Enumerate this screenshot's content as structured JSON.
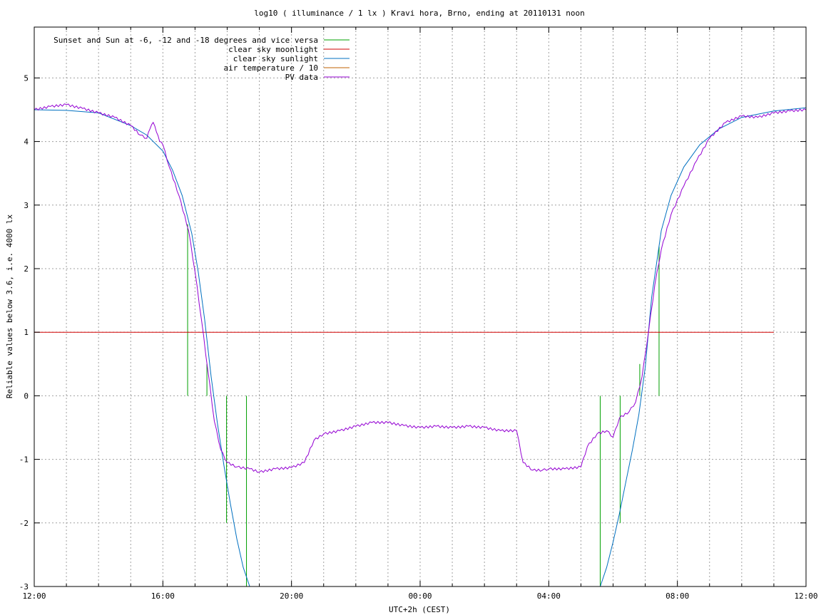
{
  "chart_data": {
    "type": "line",
    "title": "log10 ( illuminance / 1 lx ) Kravi hora, Brno, ending at 20110131 noon",
    "xlabel": "UTC+2h (CEST)",
    "ylabel": "Reliable values below 3.6, i.e. 4000 lx",
    "xlim": [
      12,
      36
    ],
    "ylim": [
      -3,
      5.8
    ],
    "x_ticks": [
      {
        "value": 12,
        "label": "12:00"
      },
      {
        "value": 16,
        "label": "16:00"
      },
      {
        "value": 20,
        "label": "20:00"
      },
      {
        "value": 24,
        "label": "00:00"
      },
      {
        "value": 28,
        "label": "04:00"
      },
      {
        "value": 32,
        "label": "08:00"
      },
      {
        "value": 36,
        "label": "12:00"
      }
    ],
    "y_ticks": [
      {
        "value": -3,
        "label": "-3"
      },
      {
        "value": -2,
        "label": "-2"
      },
      {
        "value": -1,
        "label": "-1"
      },
      {
        "value": 0,
        "label": "0"
      },
      {
        "value": 1,
        "label": "1"
      },
      {
        "value": 2,
        "label": "2"
      },
      {
        "value": 3,
        "label": "3"
      },
      {
        "value": 4,
        "label": "4"
      },
      {
        "value": 5,
        "label": "5"
      }
    ],
    "grid": true,
    "legend_position": "top-left",
    "series": [
      {
        "name": "Sunset and Sun at -6, -12 and -18 degrees and vice versa",
        "color": "#00a000",
        "kind": "vlines",
        "lines": [
          {
            "x": 16.77,
            "y1": 0,
            "y2": 2.7
          },
          {
            "x": 17.37,
            "y1": 0,
            "y2": 0.5
          },
          {
            "x": 17.98,
            "y1": 0,
            "y2": -2.0
          },
          {
            "x": 18.6,
            "y1": 0,
            "y2": -3.0
          },
          {
            "x": 29.6,
            "y1": 0,
            "y2": -3.0
          },
          {
            "x": 30.22,
            "y1": 0,
            "y2": -2.0
          },
          {
            "x": 30.83,
            "y1": 0,
            "y2": 0.5
          },
          {
            "x": 31.43,
            "y1": 0,
            "y2": 2.35
          }
        ]
      },
      {
        "name": "clear sky moonlight",
        "color": "#d00000",
        "kind": "line",
        "x": [
          12,
          35
        ],
        "y": [
          1,
          1
        ]
      },
      {
        "name": "clear sky sunlight",
        "color": "#0070c0",
        "kind": "line",
        "x": [
          12,
          13,
          14,
          15,
          15.5,
          16,
          16.3,
          16.6,
          16.9,
          17.1,
          17.3,
          17.5,
          17.7,
          17.9,
          18.1,
          18.3,
          18.5,
          18.7,
          29.6,
          29.8,
          30,
          30.2,
          30.4,
          30.6,
          30.8,
          31,
          31.2,
          31.5,
          31.8,
          32.2,
          32.7,
          33.3,
          34,
          35,
          36
        ],
        "y": [
          4.5,
          4.49,
          4.45,
          4.25,
          4.1,
          3.85,
          3.55,
          3.15,
          2.55,
          1.95,
          1.2,
          0.3,
          -0.45,
          -1.1,
          -1.7,
          -2.25,
          -2.7,
          -3.0,
          -3.0,
          -2.7,
          -2.3,
          -1.85,
          -1.35,
          -0.85,
          -0.3,
          0.45,
          1.55,
          2.6,
          3.15,
          3.6,
          3.95,
          4.2,
          4.38,
          4.48,
          4.53
        ]
      },
      {
        "name": "air temperature / 10",
        "color": "#c06000",
        "kind": "line",
        "x": [],
        "y": []
      },
      {
        "name": "PV data",
        "color": "#9400d3",
        "kind": "line",
        "x": [
          12,
          12.5,
          13,
          13.5,
          14,
          14.5,
          15,
          15.3,
          15.5,
          15.6,
          15.7,
          15.8,
          15.9,
          16,
          16.2,
          16.5,
          16.8,
          17,
          17.2,
          17.4,
          17.6,
          17.8,
          18,
          18.3,
          18.7,
          19,
          19.5,
          20,
          20.4,
          20.7,
          21,
          21.5,
          22,
          22.5,
          23,
          23.5,
          24,
          24.5,
          25,
          25.5,
          26,
          26.5,
          27,
          27.2,
          27.5,
          27.8,
          28,
          28.5,
          29,
          29.2,
          29.5,
          29.8,
          30,
          30.2,
          30.5,
          30.7,
          30.9,
          31.1,
          31.3,
          31.5,
          31.8,
          32.2,
          32.6,
          33,
          33.5,
          34,
          34.5,
          35,
          35.5,
          36
        ],
        "y": [
          4.5,
          4.55,
          4.58,
          4.52,
          4.45,
          4.38,
          4.25,
          4.1,
          4.05,
          4.2,
          4.3,
          4.15,
          4.0,
          3.95,
          3.6,
          3.15,
          2.6,
          1.95,
          1.2,
          0.4,
          -0.4,
          -0.85,
          -1.05,
          -1.12,
          -1.15,
          -1.2,
          -1.15,
          -1.13,
          -1.05,
          -0.7,
          -0.6,
          -0.55,
          -0.48,
          -0.42,
          -0.42,
          -0.47,
          -0.5,
          -0.48,
          -0.5,
          -0.48,
          -0.5,
          -0.55,
          -0.55,
          -1.05,
          -1.17,
          -1.17,
          -1.15,
          -1.15,
          -1.12,
          -0.8,
          -0.6,
          -0.55,
          -0.65,
          -0.35,
          -0.25,
          -0.1,
          0.3,
          1.0,
          1.75,
          2.3,
          2.85,
          3.3,
          3.7,
          4.05,
          4.3,
          4.4,
          4.38,
          4.45,
          4.48,
          4.5
        ]
      }
    ]
  }
}
